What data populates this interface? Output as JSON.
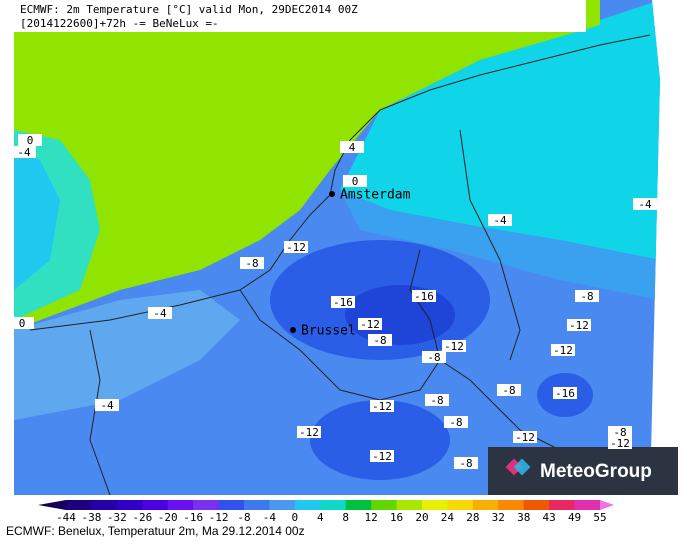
{
  "header": {
    "line1": "ECMWF: 2m Temperature [°C] valid Mon, 29DEC2014 00Z",
    "line2": "[2014122600]+72h -= BeNeLux =-"
  },
  "cities": [
    "Amsterdam",
    "Brussel"
  ],
  "contour_labels": [
    0,
    -4,
    4,
    0,
    -4,
    -4,
    -12,
    -8,
    -16,
    -16,
    -8,
    -4,
    0,
    -12,
    -8,
    -12,
    -8,
    -12,
    -12,
    -8,
    -16,
    -4,
    -8,
    -12,
    -8,
    -12,
    -12,
    -8,
    -12,
    -12,
    -8
  ],
  "colorbar": {
    "ticks": [
      -44,
      -38,
      -32,
      -26,
      -20,
      -16,
      -12,
      -8,
      -4,
      0,
      4,
      8,
      12,
      16,
      20,
      24,
      28,
      32,
      38,
      43,
      49,
      55
    ],
    "colors": [
      "#14005a",
      "#1c0080",
      "#2400a8",
      "#3000c8",
      "#4a00e0",
      "#6a10f0",
      "#7a30f0",
      "#3050f0",
      "#3c78f0",
      "#4c98f0",
      "#20c8f0",
      "#10d8c8",
      "#00c040",
      "#60d800",
      "#a8e800",
      "#e8f000",
      "#f8d800",
      "#f8b000",
      "#f88800",
      "#f05800",
      "#e82860",
      "#e030b0",
      "#f070e8"
    ]
  },
  "logo": "MeteoGroup",
  "footer": "ECMWF: Benelux, Temperatuur 2m, Ma 29.12.2014 00z"
}
